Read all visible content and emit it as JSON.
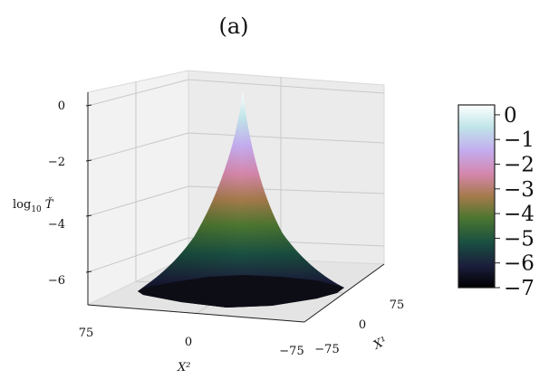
{
  "chart_data": {
    "type": "surface3d",
    "title": "(a)",
    "zlabel_prefix": "log",
    "zlabel_sub": "10",
    "zlabel_var": "Ť",
    "xlabel": "X¹",
    "ylabel": "X²",
    "z_ticks": [
      "0",
      "−2",
      "−4",
      "−6"
    ],
    "x1_ticks": [
      "75",
      "0",
      "−75"
    ],
    "x2_ticks": [
      "75",
      "0",
      "−75"
    ],
    "colorbar_ticks": [
      "0",
      "−1",
      "−2",
      "−3",
      "−4",
      "−5",
      "−6",
      "−7"
    ],
    "colorbar_range": [
      -7,
      0.4
    ],
    "zlim": [
      -7,
      0.4
    ],
    "colormap": "cubehelix",
    "colormap_stops": [
      "#000000",
      "#1b1e3c",
      "#1a5041",
      "#4b7630",
      "#a47a4a",
      "#d486ab",
      "#c3acef",
      "#c0e5e8",
      "#ffffff"
    ],
    "grid": true,
    "surface_peak_z": 0.4,
    "surface_base_z": -7
  }
}
